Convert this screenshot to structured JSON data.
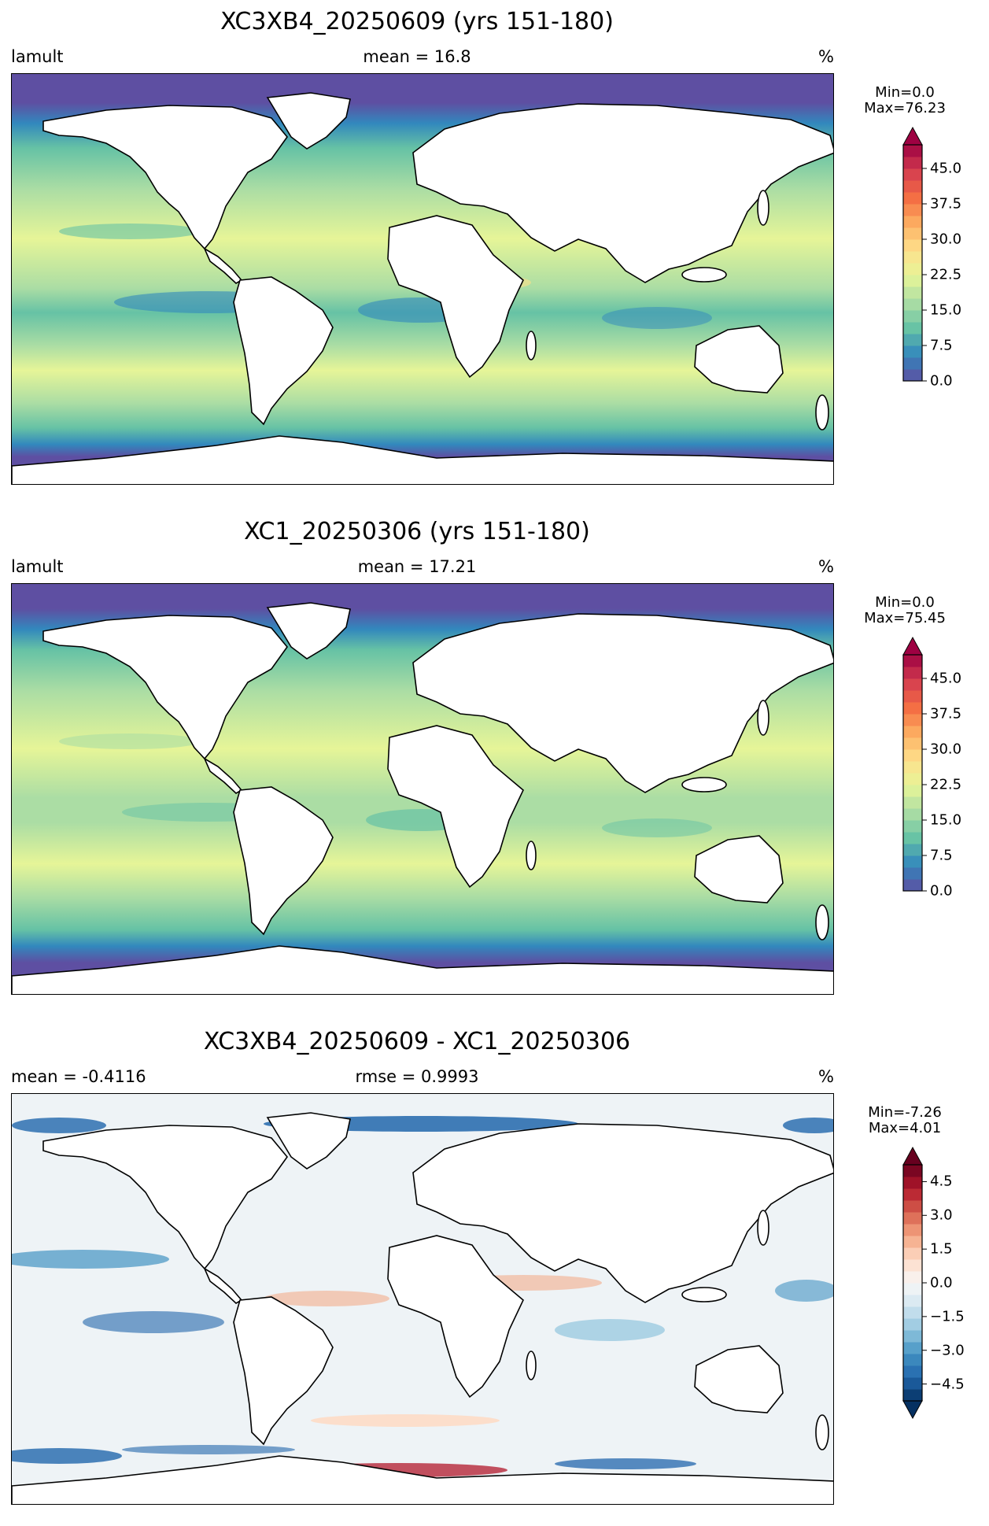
{
  "panels": [
    {
      "title": "XC3XB4_20250609 (yrs 151-180)",
      "left_label": "lamult",
      "center_label": "mean = 16.8",
      "right_label": "%",
      "colorbar": {
        "min_label": "Min=0.0",
        "max_label": "Max=76.23",
        "scale": "Spectral_r",
        "range": [
          0,
          50
        ],
        "extend": "max",
        "ticks": [
          "0.0",
          "7.5",
          "15.0",
          "22.5",
          "30.0",
          "37.5",
          "45.0"
        ],
        "tick_values": [
          0,
          7.5,
          15,
          22.5,
          30,
          37.5,
          45
        ]
      }
    },
    {
      "title": "XC1_20250306 (yrs 151-180)",
      "left_label": "lamult",
      "center_label": "mean = 17.21",
      "right_label": "%",
      "colorbar": {
        "min_label": "Min=0.0",
        "max_label": "Max=75.45",
        "scale": "Spectral_r",
        "range": [
          0,
          50
        ],
        "extend": "max",
        "ticks": [
          "0.0",
          "7.5",
          "15.0",
          "22.5",
          "30.0",
          "37.5",
          "45.0"
        ],
        "tick_values": [
          0,
          7.5,
          15,
          22.5,
          30,
          37.5,
          45
        ]
      }
    },
    {
      "title": "XC3XB4_20250609 - XC1_20250306",
      "left_label": "mean = -0.4116",
      "center_label": "rmse = 0.9993",
      "right_label": "%",
      "colorbar": {
        "min_label": "Min=-7.26",
        "max_label": "Max=4.01",
        "scale": "RdBu_r",
        "range": [
          -5.25,
          5.25
        ],
        "extend": "both",
        "ticks": [
          "−4.5",
          "−3.0",
          "−1.5",
          "0.0",
          "1.5",
          "3.0",
          "4.5"
        ],
        "tick_values": [
          -4.5,
          -3,
          -1.5,
          0,
          1.5,
          3,
          4.5
        ]
      }
    }
  ]
}
